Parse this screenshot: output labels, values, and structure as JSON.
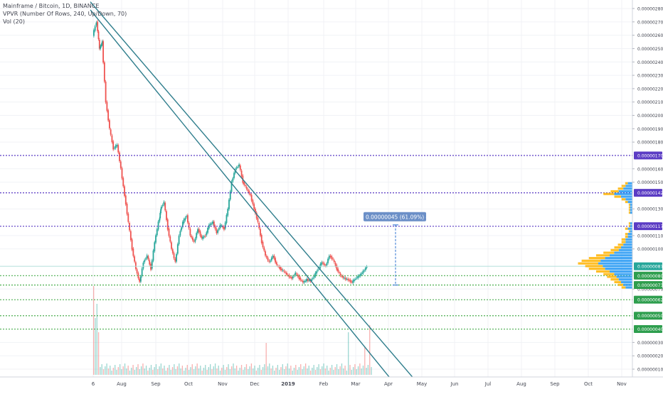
{
  "legend": {
    "symbol_line": "Mainframe / Bitcoin, 1D, BINANCE",
    "vpvr_line": "VPVR (Number Of Rows, 240, Up/Down, 70)",
    "vol_line": "Vol (20)"
  },
  "measure_label": "0.00000045 (61.09%) 45",
  "colors": {
    "up": "#26a69a",
    "down": "#ef5350",
    "trendline": "#2e7d8c",
    "resistance": "#5b3cc4",
    "support": "#4caf50",
    "vpvr_up": "#2196f3",
    "vpvr_down": "#ffb300",
    "measure": "#2a6fcf"
  },
  "chart_data": {
    "type": "candlestick",
    "x_axis_labels": [
      "6",
      "Aug",
      "Sep",
      "Oct",
      "Nov",
      "Dec",
      "2019",
      "Feb",
      "Mar",
      "Apr",
      "May",
      "Jun",
      "Jul",
      "Aug",
      "Sep",
      "Oct",
      "Nov"
    ],
    "y_axis_labels": [
      "0.00000280",
      "0.00000270",
      "0.00000260",
      "0.00000250",
      "0.00000240",
      "0.00000230",
      "0.00000220",
      "0.00000210",
      "0.00000200",
      "0.00000190",
      "0.00000180",
      "0.00000160",
      "0.00000150",
      "0.00000130",
      "0.00000110",
      "0.00000100",
      "0.00000070",
      "0.00000030",
      "0.00000020",
      "0.00000010"
    ],
    "ylim": [
      0.0,
      2.85e-06
    ],
    "price_tags": [
      {
        "value": "0.00000170",
        "kind": "resistance"
      },
      {
        "value": "0.00000142",
        "kind": "resistance"
      },
      {
        "value": "0.00000117",
        "kind": "resistance"
      },
      {
        "value": "0.00000087",
        "kind": "current"
      },
      {
        "value": "0.00000080",
        "kind": "support"
      },
      {
        "value": "0.00000073",
        "kind": "support"
      },
      {
        "value": "0.00000062",
        "kind": "support"
      },
      {
        "value": "0.00000050",
        "kind": "support"
      },
      {
        "value": "0.00000040",
        "kind": "support"
      }
    ],
    "horizontal_lines": {
      "resistance": [
        1.7e-06,
        1.42e-06,
        1.17e-06
      ],
      "support": [
        8e-07,
        7.3e-07,
        6.2e-07,
        5e-07,
        4e-07
      ]
    },
    "measure": {
      "from": 7.3e-07,
      "to": 1.18e-06
    },
    "trendlines": [
      {
        "from": {
          "day": -3,
          "price": 2.85e-06
        },
        "to": {
          "day": 345,
          "price": 0.0
        }
      },
      {
        "from": {
          "day": -3,
          "price": 2.79e-06
        },
        "to": {
          "day": 320,
          "price": 0.0
        }
      }
    ],
    "price_points": [
      [
        0,
        2.6e-06
      ],
      [
        4,
        2.7e-06
      ],
      [
        7,
        2.5e-06
      ],
      [
        10,
        2.55e-06
      ],
      [
        14,
        2.1e-06
      ],
      [
        18,
        1.9e-06
      ],
      [
        22,
        1.75e-06
      ],
      [
        26,
        1.78e-06
      ],
      [
        30,
        1.6e-06
      ],
      [
        34,
        1.4e-06
      ],
      [
        38,
        1.2e-06
      ],
      [
        42,
        1e-06
      ],
      [
        46,
        8.5e-07
      ],
      [
        50,
        7.5e-07
      ],
      [
        54,
        9e-07
      ],
      [
        58,
        9.5e-07
      ],
      [
        62,
        8.5e-07
      ],
      [
        66,
        1.05e-06
      ],
      [
        70,
        1.2e-06
      ],
      [
        72,
        1.3e-06
      ],
      [
        76,
        1.35e-06
      ],
      [
        80,
        1.15e-06
      ],
      [
        84,
        1e-06
      ],
      [
        88,
        9e-07
      ],
      [
        92,
        1.1e-06
      ],
      [
        96,
        1.2e-06
      ],
      [
        100,
        1.25e-06
      ],
      [
        104,
        1.1e-06
      ],
      [
        108,
        1.05e-06
      ],
      [
        112,
        1.15e-06
      ],
      [
        116,
        1.08e-06
      ],
      [
        120,
        1.1e-06
      ],
      [
        124,
        1.18e-06
      ],
      [
        128,
        1.2e-06
      ],
      [
        132,
        1.12e-06
      ],
      [
        136,
        1.18e-06
      ],
      [
        140,
        1.15e-06
      ],
      [
        144,
        1.3e-06
      ],
      [
        148,
        1.5e-06
      ],
      [
        152,
        1.6e-06
      ],
      [
        156,
        1.63e-06
      ],
      [
        160,
        1.5e-06
      ],
      [
        164,
        1.45e-06
      ],
      [
        168,
        1.4e-06
      ],
      [
        172,
        1.3e-06
      ],
      [
        176,
        1.2e-06
      ],
      [
        180,
        1.05e-06
      ],
      [
        184,
        9.5e-07
      ],
      [
        188,
        9e-07
      ],
      [
        192,
        9.5e-07
      ],
      [
        196,
        8.8e-07
      ],
      [
        200,
        8.5e-07
      ],
      [
        204,
        8.3e-07
      ],
      [
        208,
        8e-07
      ],
      [
        212,
        7.8e-07
      ],
      [
        216,
        8.2e-07
      ],
      [
        220,
        7.8e-07
      ],
      [
        224,
        7.5e-07
      ],
      [
        228,
        7.7e-07
      ],
      [
        232,
        7.6e-07
      ],
      [
        236,
        8e-07
      ],
      [
        240,
        8.5e-07
      ],
      [
        244,
        9e-07
      ],
      [
        248,
        8.7e-07
      ],
      [
        252,
        9.5e-07
      ],
      [
        256,
        9.2e-07
      ],
      [
        260,
        8.5e-07
      ],
      [
        264,
        8e-07
      ],
      [
        268,
        7.8e-07
      ],
      [
        272,
        7.7e-07
      ],
      [
        276,
        7.5e-07
      ],
      [
        280,
        7.8e-07
      ],
      [
        284,
        8e-07
      ],
      [
        288,
        8.3e-07
      ],
      [
        292,
        8.7e-07
      ]
    ],
    "volume_profile": [
      2,
      3,
      4,
      6,
      8,
      5,
      3,
      2,
      1,
      1,
      1,
      1,
      0,
      0,
      0,
      1,
      1,
      2,
      1,
      2,
      2,
      3,
      3,
      4,
      5,
      6,
      8,
      10,
      12,
      14,
      15,
      13,
      12,
      10,
      8,
      7,
      6,
      5,
      4,
      3
    ]
  }
}
